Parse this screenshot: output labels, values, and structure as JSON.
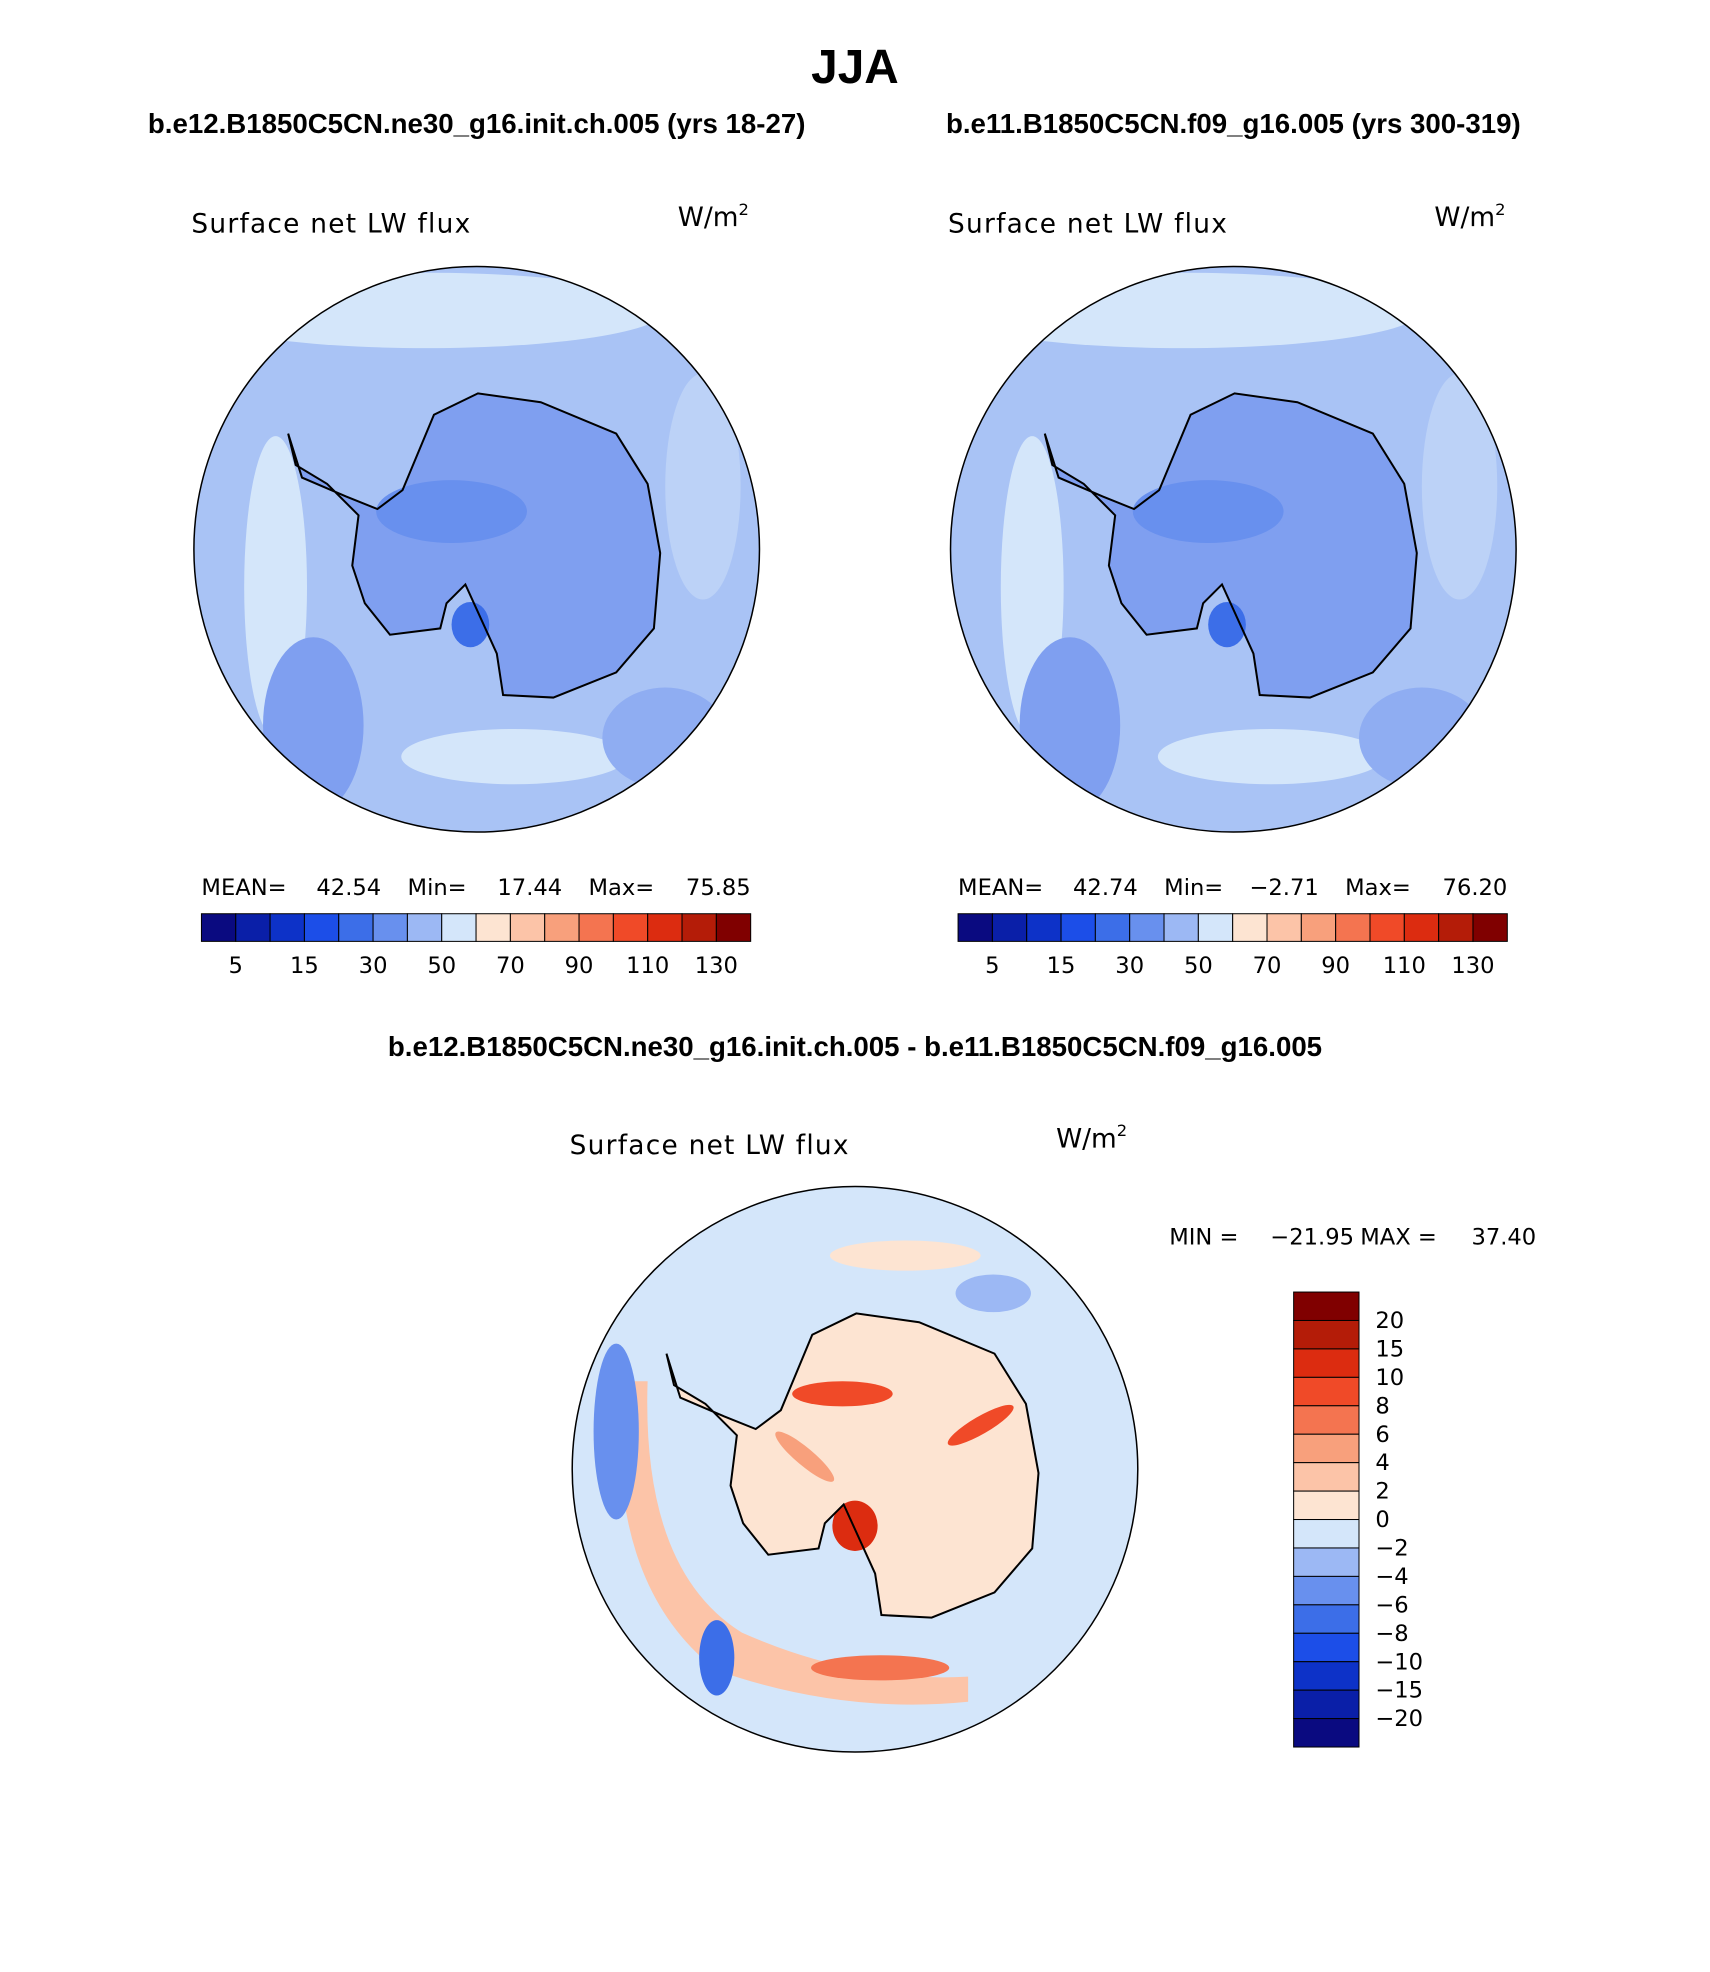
{
  "title": "JJA",
  "panels": [
    {
      "case": "b.e12.B1850C5CN.ne30_g16.init.ch.005 (yrs 18-27)",
      "variable": "Surface net LW flux",
      "units": {
        "base": "W/m",
        "exponent": "2"
      },
      "stats": [
        {
          "label": "MEAN=",
          "value": "42.54"
        },
        {
          "label": "Min=",
          "value": "17.44"
        },
        {
          "label": "Max=",
          "value": "75.85"
        }
      ],
      "colorbar_labels": [
        "5",
        "15",
        "30",
        "50",
        "70",
        "90",
        "110",
        "130"
      ]
    },
    {
      "case": "b.e11.B1850C5CN.f09_g16.005 (yrs 300-319)",
      "variable": "Surface net LW flux",
      "units": {
        "base": "W/m",
        "exponent": "2"
      },
      "stats": [
        {
          "label": "MEAN=",
          "value": "42.74"
        },
        {
          "label": "Min=",
          "value": "−2.71"
        },
        {
          "label": "Max=",
          "value": "76.20"
        }
      ],
      "colorbar_labels": [
        "5",
        "15",
        "30",
        "50",
        "70",
        "90",
        "110",
        "130"
      ]
    }
  ],
  "difference": {
    "case": "b.e12.B1850C5CN.ne30_g16.init.ch.005 - b.e11.B1850C5CN.f09_g16.005",
    "variable": "Surface net LW flux",
    "units": {
      "base": "W/m",
      "exponent": "2"
    },
    "stats": [
      {
        "label": "MIN =",
        "value": "−21.95"
      },
      {
        "label": "MAX =",
        "value": "37.40"
      }
    ],
    "colorbar_labels": [
      "20",
      "15",
      "10",
      "8",
      "6",
      "4",
      "2",
      "0",
      "−2",
      "−4",
      "−6",
      "−8",
      "−10",
      "−15",
      "−20"
    ]
  },
  "palette": [
    "#0a0a80",
    "#0a1fa8",
    "#0d32c8",
    "#1c4ee8",
    "#3c6ee8",
    "#6890ee",
    "#9cb8f4",
    "#d4e6fa",
    "#fde4d2",
    "#fcc4a8",
    "#f8a07c",
    "#f47450",
    "#f04a28",
    "#dc2c10",
    "#b41c08",
    "#800000"
  ]
}
